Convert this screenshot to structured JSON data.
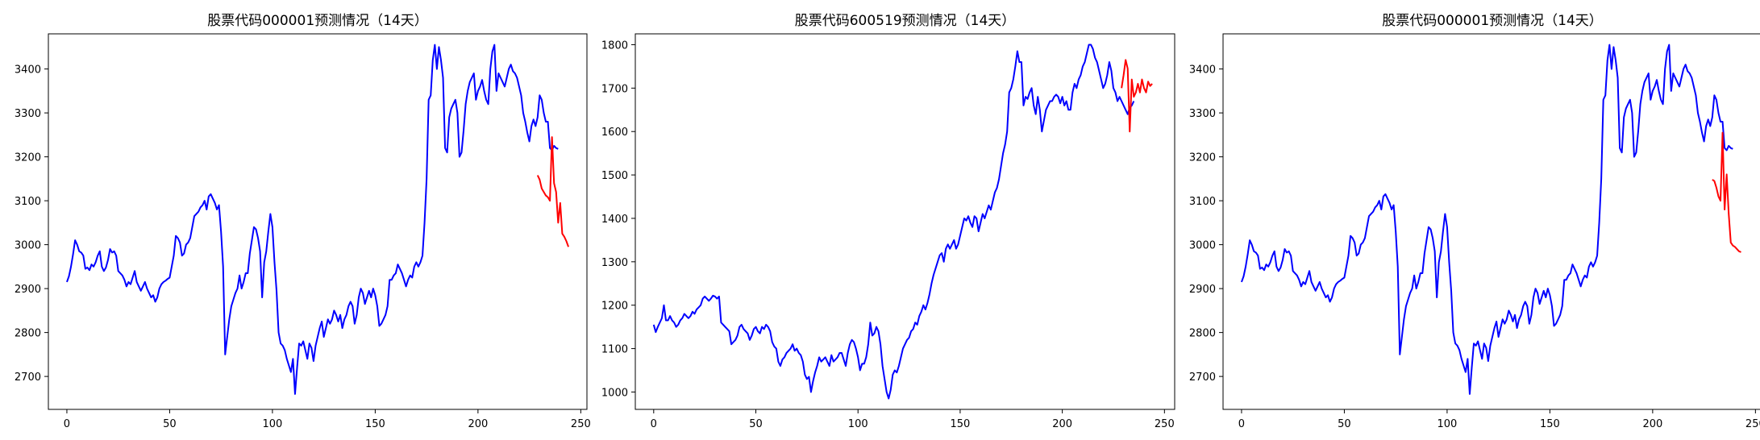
{
  "chart_data": [
    {
      "type": "line",
      "title": "股票代码000001预测情况（14天）",
      "xlim": [
        -9,
        253
      ],
      "ylim": [
        2625,
        3480
      ],
      "xticks": [
        0,
        50,
        100,
        150,
        200,
        250
      ],
      "yticks": [
        2700,
        2800,
        2900,
        3000,
        3100,
        3200,
        3300,
        3400
      ],
      "colors": {
        "actual": "#0000ff",
        "predicted": "#ff0000"
      },
      "series": [
        {
          "role": "actual",
          "x_start": 0,
          "values": [
            2915,
            2928,
            2950,
            2978,
            3010,
            3000,
            2985,
            2982,
            2975,
            2945,
            2948,
            2942,
            2955,
            2950,
            2960,
            2975,
            2985,
            2950,
            2940,
            2948,
            2965,
            2990,
            2982,
            2985,
            2975,
            2940,
            2935,
            2930,
            2920,
            2905,
            2915,
            2910,
            2925,
            2940,
            2915,
            2905,
            2895,
            2905,
            2915,
            2900,
            2890,
            2880,
            2885,
            2870,
            2880,
            2900,
            2910,
            2915,
            2918,
            2922,
            2925,
            2950,
            2975,
            3020,
            3015,
            3005,
            2975,
            2980,
            3000,
            3005,
            3015,
            3040,
            3065,
            3070,
            3075,
            3085,
            3090,
            3100,
            3080,
            3110,
            3115,
            3105,
            3095,
            3080,
            3090,
            3030,
            2950,
            2750,
            2790,
            2830,
            2860,
            2875,
            2890,
            2900,
            2930,
            2900,
            2915,
            2935,
            2935,
            2980,
            3010,
            3040,
            3035,
            3015,
            2985,
            2880,
            2960,
            2985,
            3030,
            3070,
            3040,
            2960,
            2895,
            2800,
            2775,
            2770,
            2760,
            2740,
            2725,
            2710,
            2740,
            2660,
            2720,
            2775,
            2770,
            2780,
            2760,
            2740,
            2775,
            2765,
            2735,
            2770,
            2790,
            2810,
            2825,
            2790,
            2810,
            2830,
            2820,
            2830,
            2850,
            2840,
            2825,
            2840,
            2810,
            2830,
            2840,
            2860,
            2870,
            2860,
            2820,
            2840,
            2880,
            2900,
            2890,
            2865,
            2880,
            2895,
            2880,
            2900,
            2885,
            2860,
            2815,
            2820,
            2830,
            2840,
            2860,
            2920,
            2920,
            2930,
            2935,
            2955,
            2945,
            2935,
            2920,
            2905,
            2920,
            2930,
            2925,
            2950,
            2960,
            2950,
            2960,
            2975,
            3050,
            3150,
            3330,
            3340,
            3420,
            3455,
            3400,
            3450,
            3420,
            3380,
            3220,
            3210,
            3290,
            3310,
            3320,
            3330,
            3300,
            3200,
            3210,
            3260,
            3320,
            3350,
            3370,
            3380,
            3390,
            3330,
            3350,
            3360,
            3375,
            3350,
            3330,
            3320,
            3400,
            3440,
            3455,
            3350,
            3390,
            3380,
            3370,
            3360,
            3380,
            3400,
            3410,
            3395,
            3390,
            3380,
            3360,
            3340,
            3300,
            3280,
            3255,
            3235,
            3270,
            3285,
            3270,
            3290,
            3340,
            3330,
            3300,
            3280,
            3280,
            3220,
            3215,
            3225,
            3220,
            3218
          ]
        },
        {
          "role": "predicted",
          "x_start": 229,
          "values": [
            3158,
            3148,
            3128,
            3120,
            3112,
            3108,
            3100,
            3245,
            3140,
            3120,
            3050,
            3095,
            3025,
            3018,
            3008,
            2995
          ]
        }
      ]
    },
    {
      "type": "line",
      "title": "股票代码600519预测情况（14天）",
      "xlim": [
        -9,
        255
      ],
      "ylim": [
        960,
        1825
      ],
      "xticks": [
        0,
        50,
        100,
        150,
        200,
        250
      ],
      "yticks": [
        1000,
        1100,
        1200,
        1300,
        1400,
        1500,
        1600,
        1700,
        1800
      ],
      "colors": {
        "actual": "#0000ff",
        "predicted": "#ff0000"
      },
      "series": [
        {
          "role": "actual",
          "x_start": 0,
          "values": [
            1155,
            1138,
            1150,
            1160,
            1170,
            1200,
            1165,
            1165,
            1175,
            1165,
            1160,
            1150,
            1155,
            1165,
            1170,
            1180,
            1175,
            1170,
            1175,
            1185,
            1180,
            1190,
            1195,
            1200,
            1215,
            1220,
            1215,
            1210,
            1215,
            1222,
            1220,
            1215,
            1220,
            1160,
            1155,
            1150,
            1145,
            1140,
            1110,
            1115,
            1120,
            1130,
            1150,
            1155,
            1145,
            1140,
            1135,
            1120,
            1130,
            1145,
            1150,
            1140,
            1135,
            1150,
            1145,
            1155,
            1150,
            1140,
            1115,
            1105,
            1100,
            1070,
            1060,
            1075,
            1080,
            1090,
            1095,
            1100,
            1110,
            1095,
            1100,
            1090,
            1085,
            1070,
            1040,
            1030,
            1035,
            1000,
            1025,
            1045,
            1060,
            1080,
            1070,
            1075,
            1080,
            1070,
            1060,
            1085,
            1070,
            1075,
            1080,
            1090,
            1090,
            1075,
            1060,
            1090,
            1110,
            1120,
            1115,
            1100,
            1080,
            1050,
            1065,
            1065,
            1080,
            1110,
            1160,
            1130,
            1135,
            1150,
            1140,
            1110,
            1060,
            1030,
            1000,
            985,
            1005,
            1040,
            1050,
            1045,
            1060,
            1080,
            1100,
            1110,
            1120,
            1125,
            1140,
            1145,
            1160,
            1155,
            1175,
            1185,
            1200,
            1190,
            1205,
            1225,
            1250,
            1270,
            1285,
            1300,
            1315,
            1320,
            1300,
            1330,
            1340,
            1330,
            1340,
            1350,
            1330,
            1340,
            1360,
            1380,
            1400,
            1395,
            1405,
            1390,
            1380,
            1405,
            1400,
            1370,
            1390,
            1410,
            1400,
            1415,
            1430,
            1420,
            1440,
            1460,
            1470,
            1490,
            1520,
            1550,
            1570,
            1600,
            1690,
            1700,
            1720,
            1750,
            1785,
            1760,
            1760,
            1660,
            1680,
            1675,
            1690,
            1700,
            1660,
            1640,
            1680,
            1650,
            1600,
            1625,
            1650,
            1660,
            1670,
            1670,
            1680,
            1685,
            1680,
            1665,
            1680,
            1660,
            1670,
            1650,
            1650,
            1690,
            1710,
            1700,
            1720,
            1730,
            1750,
            1760,
            1780,
            1800,
            1800,
            1790,
            1770,
            1760,
            1740,
            1720,
            1700,
            1710,
            1730,
            1760,
            1740,
            1700,
            1690,
            1670,
            1680,
            1670,
            1660,
            1650,
            1640,
            1655,
            1660,
            1670
          ]
        },
        {
          "role": "predicted",
          "x_start": 229,
          "values": [
            1700,
            1730,
            1765,
            1745,
            1600,
            1720,
            1680,
            1690,
            1710,
            1690,
            1720,
            1700,
            1690,
            1715,
            1705,
            1710
          ]
        }
      ]
    },
    {
      "type": "line",
      "title": "股票代码000001预测情况（14天）",
      "xlim": [
        -9,
        253
      ],
      "ylim": [
        2625,
        3480
      ],
      "xticks": [
        0,
        50,
        100,
        150,
        200,
        250
      ],
      "yticks": [
        2700,
        2800,
        2900,
        3000,
        3100,
        3200,
        3300,
        3400
      ],
      "colors": {
        "actual": "#0000ff",
        "predicted": "#ff0000"
      },
      "series": [
        {
          "role": "actual",
          "x_start": 0,
          "values": [
            2915,
            2928,
            2950,
            2978,
            3010,
            3000,
            2985,
            2982,
            2975,
            2945,
            2948,
            2942,
            2955,
            2950,
            2960,
            2975,
            2985,
            2950,
            2940,
            2948,
            2965,
            2990,
            2982,
            2985,
            2975,
            2940,
            2935,
            2930,
            2920,
            2905,
            2915,
            2910,
            2925,
            2940,
            2915,
            2905,
            2895,
            2905,
            2915,
            2900,
            2890,
            2880,
            2885,
            2870,
            2880,
            2900,
            2910,
            2915,
            2918,
            2922,
            2925,
            2950,
            2975,
            3020,
            3015,
            3005,
            2975,
            2980,
            3000,
            3005,
            3015,
            3040,
            3065,
            3070,
            3075,
            3085,
            3090,
            3100,
            3080,
            3110,
            3115,
            3105,
            3095,
            3080,
            3090,
            3030,
            2950,
            2750,
            2790,
            2830,
            2860,
            2875,
            2890,
            2900,
            2930,
            2900,
            2915,
            2935,
            2935,
            2980,
            3010,
            3040,
            3035,
            3015,
            2985,
            2880,
            2960,
            2985,
            3030,
            3070,
            3040,
            2960,
            2895,
            2800,
            2775,
            2770,
            2760,
            2740,
            2725,
            2710,
            2740,
            2660,
            2720,
            2775,
            2770,
            2780,
            2760,
            2740,
            2775,
            2765,
            2735,
            2770,
            2790,
            2810,
            2825,
            2790,
            2810,
            2830,
            2820,
            2830,
            2850,
            2840,
            2825,
            2840,
            2810,
            2830,
            2840,
            2860,
            2870,
            2860,
            2820,
            2840,
            2880,
            2900,
            2890,
            2865,
            2880,
            2895,
            2880,
            2900,
            2885,
            2860,
            2815,
            2820,
            2830,
            2840,
            2860,
            2920,
            2920,
            2930,
            2935,
            2955,
            2945,
            2935,
            2920,
            2905,
            2920,
            2930,
            2925,
            2950,
            2960,
            2950,
            2960,
            2975,
            3050,
            3150,
            3330,
            3340,
            3420,
            3455,
            3400,
            3450,
            3420,
            3380,
            3220,
            3210,
            3290,
            3310,
            3320,
            3330,
            3300,
            3200,
            3210,
            3260,
            3320,
            3350,
            3370,
            3380,
            3390,
            3330,
            3350,
            3360,
            3375,
            3350,
            3330,
            3320,
            3400,
            3440,
            3455,
            3350,
            3390,
            3380,
            3370,
            3360,
            3380,
            3400,
            3410,
            3395,
            3390,
            3380,
            3360,
            3340,
            3300,
            3280,
            3255,
            3235,
            3270,
            3285,
            3270,
            3290,
            3340,
            3330,
            3300,
            3280,
            3280,
            3220,
            3215,
            3225,
            3220,
            3218
          ]
        },
        {
          "role": "predicted",
          "x_start": 229,
          "values": [
            3148,
            3145,
            3130,
            3110,
            3100,
            3255,
            3080,
            3160,
            3070,
            3005,
            2998,
            2995,
            2990,
            2985,
            2983
          ]
        }
      ]
    }
  ]
}
